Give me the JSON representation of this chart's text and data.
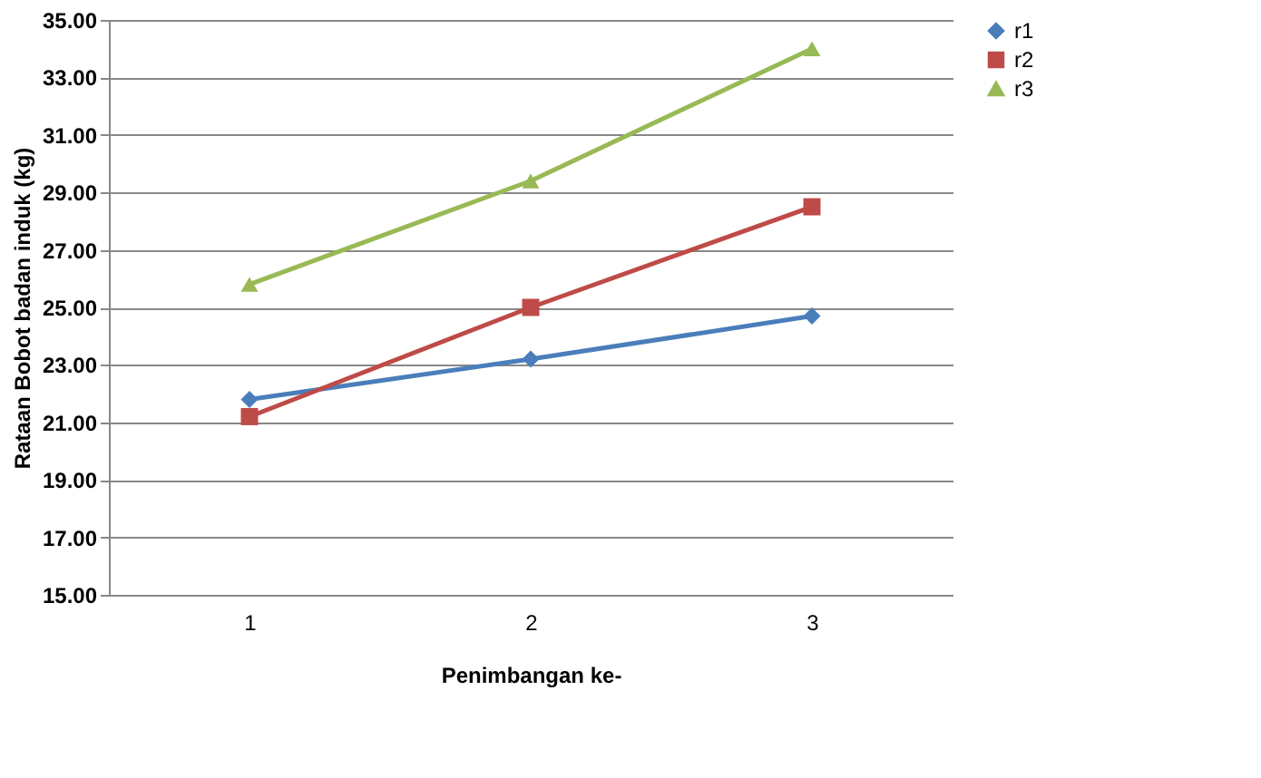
{
  "chart_data": {
    "type": "line",
    "xlabel": "Penimbangan ke-",
    "ylabel": "Rataan Bobot badan  induk (kg)",
    "categories": [
      "1",
      "2",
      "3"
    ],
    "series": [
      {
        "name": "r1",
        "color": "#4a7ebb",
        "marker": "diamond",
        "values": [
          21.8,
          23.2,
          24.7
        ]
      },
      {
        "name": "r2",
        "color": "#be4b48",
        "marker": "square",
        "values": [
          21.2,
          25.0,
          28.5
        ]
      },
      {
        "name": "r3",
        "color": "#98b954",
        "marker": "triangle",
        "values": [
          25.8,
          29.4,
          34.0
        ]
      }
    ],
    "ylim": [
      15,
      35
    ],
    "yticks": [
      {
        "value": 15,
        "label": "15.00"
      },
      {
        "value": 17,
        "label": "17.00"
      },
      {
        "value": 19,
        "label": "19.00"
      },
      {
        "value": 21,
        "label": "21.00"
      },
      {
        "value": 23,
        "label": "23.00"
      },
      {
        "value": 25,
        "label": "25.00"
      },
      {
        "value": 27,
        "label": "27.00"
      },
      {
        "value": 29,
        "label": "29.00"
      },
      {
        "value": 31,
        "label": "31.00"
      },
      {
        "value": 33,
        "label": "33.00"
      },
      {
        "value": 35,
        "label": "35.00"
      }
    ],
    "grid": "y",
    "legend": "right"
  }
}
